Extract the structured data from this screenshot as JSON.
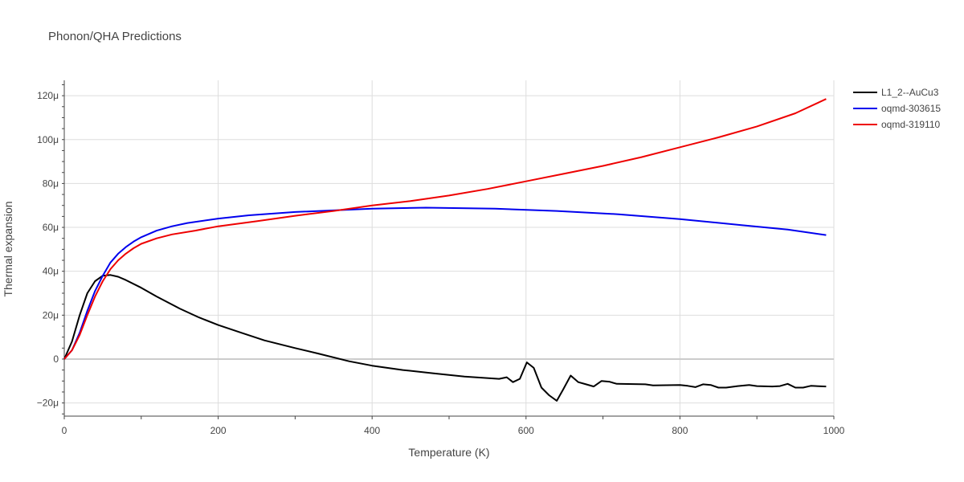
{
  "chart_data": {
    "type": "line",
    "title": "Phonon/QHA Predictions",
    "xlabel": "Temperature (K)",
    "ylabel": "Thermal expansion",
    "xlim": [
      0,
      1000
    ],
    "ylim": [
      -26,
      127
    ],
    "x_ticks": [
      {
        "value": 0,
        "label": "0"
      },
      {
        "value": 200,
        "label": "200"
      },
      {
        "value": 400,
        "label": "400"
      },
      {
        "value": 600,
        "label": "600"
      },
      {
        "value": 800,
        "label": "800"
      },
      {
        "value": 1000,
        "label": "1000"
      }
    ],
    "y_ticks": [
      {
        "value": -20,
        "label": "−20μ"
      },
      {
        "value": 0,
        "label": "0"
      },
      {
        "value": 20,
        "label": "20μ"
      },
      {
        "value": 40,
        "label": "40μ"
      },
      {
        "value": 60,
        "label": "60μ"
      },
      {
        "value": 80,
        "label": "80μ"
      },
      {
        "value": 100,
        "label": "100μ"
      },
      {
        "value": 120,
        "label": "120μ"
      }
    ],
    "y_unit": "μ (1e-6 /K)",
    "grid": true,
    "legend_position": "top-right",
    "series": [
      {
        "name": "L1_2--AuCu3",
        "color": "#000000",
        "points": [
          [
            0,
            0
          ],
          [
            10,
            8
          ],
          [
            20,
            20
          ],
          [
            30,
            30
          ],
          [
            40,
            35.5
          ],
          [
            50,
            38
          ],
          [
            60,
            38.3
          ],
          [
            70,
            37.5
          ],
          [
            80,
            36
          ],
          [
            100,
            32.5
          ],
          [
            120,
            28.5
          ],
          [
            150,
            23
          ],
          [
            175,
            19
          ],
          [
            200,
            15.5
          ],
          [
            230,
            12
          ],
          [
            260,
            8.5
          ],
          [
            300,
            5
          ],
          [
            330,
            2.5
          ],
          [
            370,
            -1
          ],
          [
            400,
            -3
          ],
          [
            440,
            -5
          ],
          [
            480,
            -6.5
          ],
          [
            520,
            -8
          ],
          [
            565,
            -9
          ],
          [
            575,
            -8.3
          ],
          [
            583,
            -10.5
          ],
          [
            592,
            -9
          ],
          [
            601,
            -1.5
          ],
          [
            610,
            -4
          ],
          [
            620,
            -13
          ],
          [
            630,
            -16.5
          ],
          [
            640,
            -19
          ],
          [
            648,
            -14
          ],
          [
            658,
            -7.5
          ],
          [
            668,
            -10.5
          ],
          [
            678,
            -11.5
          ],
          [
            688,
            -12.5
          ],
          [
            698,
            -10
          ],
          [
            708,
            -10.3
          ],
          [
            718,
            -11.3
          ],
          [
            755,
            -11.5
          ],
          [
            765,
            -12
          ],
          [
            800,
            -11.8
          ],
          [
            810,
            -12.2
          ],
          [
            820,
            -12.8
          ],
          [
            830,
            -11.5
          ],
          [
            840,
            -11.8
          ],
          [
            850,
            -13
          ],
          [
            860,
            -13
          ],
          [
            875,
            -12.3
          ],
          [
            890,
            -11.8
          ],
          [
            900,
            -12.3
          ],
          [
            920,
            -12.5
          ],
          [
            930,
            -12.3
          ],
          [
            940,
            -11.3
          ],
          [
            950,
            -13
          ],
          [
            960,
            -13
          ],
          [
            970,
            -12.2
          ],
          [
            990,
            -12.5
          ]
        ]
      },
      {
        "name": "oqmd-303615",
        "color": "#0000ee",
        "points": [
          [
            0,
            0
          ],
          [
            10,
            4
          ],
          [
            20,
            12
          ],
          [
            30,
            22
          ],
          [
            40,
            31
          ],
          [
            50,
            38
          ],
          [
            60,
            44
          ],
          [
            70,
            48
          ],
          [
            80,
            51
          ],
          [
            90,
            53.5
          ],
          [
            100,
            55.5
          ],
          [
            120,
            58.5
          ],
          [
            140,
            60.5
          ],
          [
            160,
            62
          ],
          [
            200,
            64
          ],
          [
            240,
            65.5
          ],
          [
            300,
            67
          ],
          [
            400,
            68.5
          ],
          [
            470,
            69
          ],
          [
            560,
            68.5
          ],
          [
            640,
            67.5
          ],
          [
            720,
            66
          ],
          [
            800,
            63.8
          ],
          [
            880,
            61
          ],
          [
            940,
            59
          ],
          [
            990,
            56.5
          ]
        ]
      },
      {
        "name": "oqmd-319110",
        "color": "#ee0000",
        "points": [
          [
            0,
            0
          ],
          [
            10,
            4
          ],
          [
            20,
            11
          ],
          [
            30,
            20
          ],
          [
            40,
            28.5
          ],
          [
            50,
            35.5
          ],
          [
            60,
            41
          ],
          [
            70,
            45
          ],
          [
            80,
            48
          ],
          [
            90,
            50.5
          ],
          [
            100,
            52.5
          ],
          [
            120,
            55
          ],
          [
            140,
            56.8
          ],
          [
            170,
            58.5
          ],
          [
            200,
            60.5
          ],
          [
            250,
            62.8
          ],
          [
            300,
            65.3
          ],
          [
            350,
            67.5
          ],
          [
            400,
            70
          ],
          [
            450,
            72
          ],
          [
            500,
            74.5
          ],
          [
            550,
            77.5
          ],
          [
            600,
            81
          ],
          [
            650,
            84.5
          ],
          [
            700,
            88
          ],
          [
            750,
            92
          ],
          [
            800,
            96.5
          ],
          [
            850,
            101
          ],
          [
            900,
            106
          ],
          [
            950,
            112
          ],
          [
            990,
            118.5
          ]
        ]
      }
    ]
  }
}
